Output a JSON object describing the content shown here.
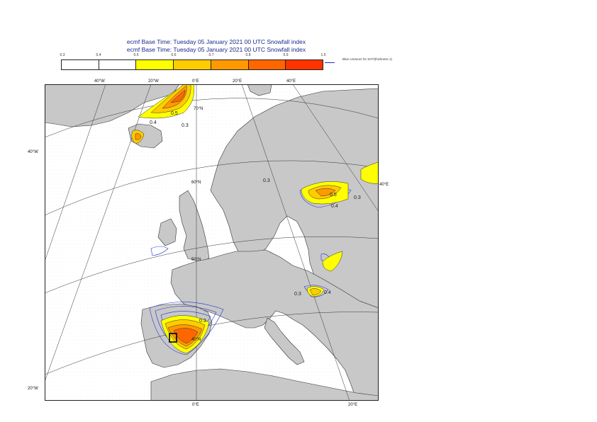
{
  "title_line1": "ecmf  Base Time: Tuesday 05 January 2021 00 UTC Snowfall index",
  "title_line2": "ecmf  Base Time: Tuesday 05 January 2021 00 UTC Snowfall index",
  "legend": {
    "ticks": [
      "0.3",
      "0.4",
      "0.5",
      "0.6",
      "0.7",
      "0.8",
      "0.9",
      "1.5"
    ],
    "colors": [
      "#ffffff",
      "#ffffff",
      "#ffff00",
      "#ffcc00",
      "#ff9900",
      "#ff6600",
      "#ff3300"
    ],
    "sot_note": "Blue contours for SOT(thickness 1)"
  },
  "map": {
    "graticule_labels": [
      "40°W",
      "20°W",
      "0°E",
      "20°E",
      "40°E",
      "70°N",
      "60°N",
      "50°N",
      "40°N",
      "40°E",
      "40°W",
      "20°W",
      "0°E",
      "20°E"
    ],
    "contour_labels": [
      "0.5",
      "0.4",
      "0.3",
      "0.3",
      "0.5",
      "0.4",
      "0.3",
      "0.3",
      "0.3",
      "0.4"
    ],
    "land_color": "#c8c8c8",
    "sea_color": "#ffffff",
    "sot_color": "#1f2fd0"
  }
}
